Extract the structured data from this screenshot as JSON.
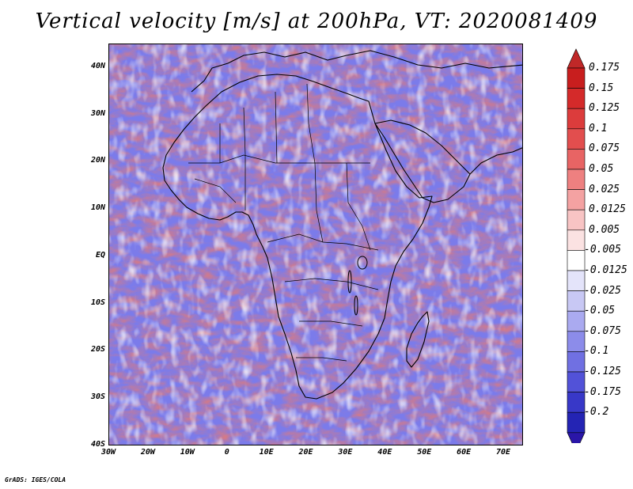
{
  "title": "Vertical velocity [m/s] at 200hPa, VT: 2020081409",
  "credit": "GrADS: IGES/COLA",
  "map": {
    "region": "Africa and surrounding oceans",
    "lon_range": [
      -30,
      75
    ],
    "lat_range": [
      -40,
      45
    ],
    "lat_ticks": [
      {
        "value": 40,
        "label": "40N"
      },
      {
        "value": 30,
        "label": "30N"
      },
      {
        "value": 20,
        "label": "20N"
      },
      {
        "value": 10,
        "label": "10N"
      },
      {
        "value": 0,
        "label": "EQ"
      },
      {
        "value": -10,
        "label": "10S"
      },
      {
        "value": -20,
        "label": "20S"
      },
      {
        "value": -30,
        "label": "30S"
      },
      {
        "value": -40,
        "label": "40S"
      }
    ],
    "lon_ticks": [
      {
        "value": -30,
        "label": "30W"
      },
      {
        "value": -20,
        "label": "20W"
      },
      {
        "value": -10,
        "label": "10W"
      },
      {
        "value": 0,
        "label": "0"
      },
      {
        "value": 10,
        "label": "10E"
      },
      {
        "value": 20,
        "label": "20E"
      },
      {
        "value": 30,
        "label": "30E"
      },
      {
        "value": 40,
        "label": "40E"
      },
      {
        "value": 50,
        "label": "50E"
      },
      {
        "value": 60,
        "label": "60E"
      },
      {
        "value": 70,
        "label": "70E"
      }
    ],
    "field_colors": {
      "upward": "#e07a7a",
      "downward": "#7b7bea",
      "neutral": "#ffffff",
      "coastline": "#000000"
    }
  },
  "colorbar": {
    "levels": [
      {
        "label": "0.175",
        "color": "#c81e1e"
      },
      {
        "label": "0.15",
        "color": "#d42a2a"
      },
      {
        "label": "0.125",
        "color": "#dc3c3c"
      },
      {
        "label": "0.1",
        "color": "#e24e4e"
      },
      {
        "label": "0.075",
        "color": "#e86464"
      },
      {
        "label": "0.05",
        "color": "#ee8080"
      },
      {
        "label": "0.025",
        "color": "#f4a2a2"
      },
      {
        "label": "0.0125",
        "color": "#f8c4c4"
      },
      {
        "label": "0.005",
        "color": "#fbe2e2"
      },
      {
        "label": "-0.005",
        "color": "#ffffff"
      },
      {
        "label": "-0.0125",
        "color": "#e4e4fa"
      },
      {
        "label": "-0.025",
        "color": "#c8c8f4"
      },
      {
        "label": "-0.05",
        "color": "#aaaaf0"
      },
      {
        "label": "-0.075",
        "color": "#8c8cea"
      },
      {
        "label": "-0.1",
        "color": "#7070e2"
      },
      {
        "label": "-0.125",
        "color": "#5252d8"
      },
      {
        "label": "-0.175",
        "color": "#3838c8"
      },
      {
        "label": "-0.2",
        "color": "#2424b4"
      }
    ],
    "min_arrow_color": "#2a16a8",
    "max_arrow_color": "#c02828"
  }
}
